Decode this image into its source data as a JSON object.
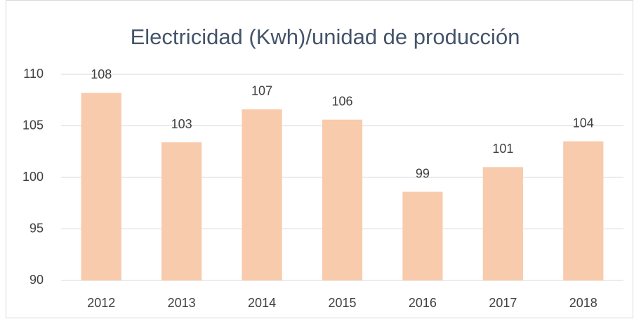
{
  "chart_data": {
    "type": "bar",
    "title": "Electricidad (Kwh)/unidad de producción",
    "categories": [
      "2012",
      "2013",
      "2014",
      "2015",
      "2016",
      "2017",
      "2018"
    ],
    "values": [
      108.2,
      103.4,
      106.6,
      105.6,
      98.6,
      101.0,
      103.5
    ],
    "value_labels": [
      "108",
      "103",
      "107",
      "106",
      "99",
      "101",
      "104"
    ],
    "color": "#f8cbad",
    "ylim": [
      90,
      110
    ],
    "yticks": [
      90,
      95,
      100,
      105,
      110
    ],
    "grid": true
  }
}
